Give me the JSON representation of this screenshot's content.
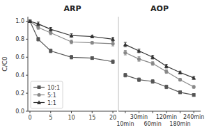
{
  "chart_data": [
    {
      "type": "line",
      "title": "ARP",
      "ylabel": "C/C0",
      "x": [
        0,
        2,
        5,
        10,
        15,
        20
      ],
      "xlim": [
        -0.5,
        21
      ],
      "xticks": [
        0,
        5,
        10,
        15,
        20
      ],
      "ylim": [
        0.0,
        1.05
      ],
      "yticks": [
        {
          "value": 0.0,
          "label": "0.0"
        },
        {
          "value": 0.2,
          "label": "0.2"
        },
        {
          "value": 0.4,
          "label": "0.4"
        },
        {
          "value": 0.6,
          "label": "0.6"
        },
        {
          "value": 0.8,
          "label": "0.8"
        },
        {
          "value": 1.0,
          "label": "1.0"
        }
      ],
      "legend": "lower left",
      "series": [
        {
          "name": "10:1",
          "color": "#555555",
          "marker": "square",
          "values": [
            1.0,
            0.8,
            0.67,
            0.6,
            0.59,
            0.55
          ],
          "errors": [
            0.0,
            0.02,
            0.02,
            0.02,
            0.015,
            0.02
          ]
        },
        {
          "name": "5:1",
          "color": "#888888",
          "marker": "circle",
          "values": [
            1.0,
            0.93,
            0.87,
            0.77,
            0.76,
            0.75
          ],
          "errors": [
            0.0,
            0.02,
            0.02,
            0.02,
            0.015,
            0.025
          ]
        },
        {
          "name": "1:1",
          "color": "#333333",
          "marker": "triangle",
          "values": [
            1.0,
            0.97,
            0.91,
            0.84,
            0.83,
            0.8
          ],
          "errors": [
            0.0,
            0.02,
            0.02,
            0.02,
            0.015,
            0.02
          ]
        }
      ]
    },
    {
      "type": "line",
      "title": "AOP",
      "categories": [
        "10min",
        "30min",
        "60min",
        "120min",
        "180min",
        "240min"
      ],
      "ylim": [
        0.0,
        1.05
      ],
      "tick_labels": "x",
      "series": [
        {
          "color": "#555555",
          "marker": "square",
          "values": [
            0.4,
            0.35,
            0.33,
            0.27,
            0.21,
            0.18
          ],
          "errors": [
            0.02,
            0.02,
            0.02,
            0.02,
            0.015,
            0.015
          ]
        },
        {
          "color": "#888888",
          "marker": "circle",
          "values": [
            0.65,
            0.58,
            0.53,
            0.44,
            0.35,
            0.27
          ],
          "errors": [
            0.025,
            0.025,
            0.02,
            0.02,
            0.015,
            0.015
          ]
        },
        {
          "color": "#333333",
          "marker": "triangle",
          "values": [
            0.74,
            0.67,
            0.6,
            0.5,
            0.43,
            0.37
          ],
          "errors": [
            0.025,
            0.02,
            0.02,
            0.02,
            0.015,
            0.015
          ]
        }
      ]
    }
  ]
}
